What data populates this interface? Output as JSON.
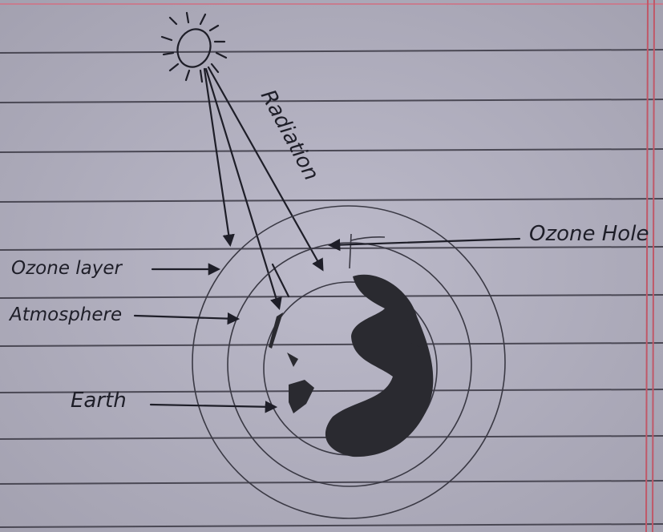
{
  "labels": {
    "radiation": "Radiation",
    "ozone_hole": "Ozone Hole",
    "ozone_layer": "Ozone layer",
    "atmosphere": "Atmosphere",
    "earth": "Earth"
  }
}
